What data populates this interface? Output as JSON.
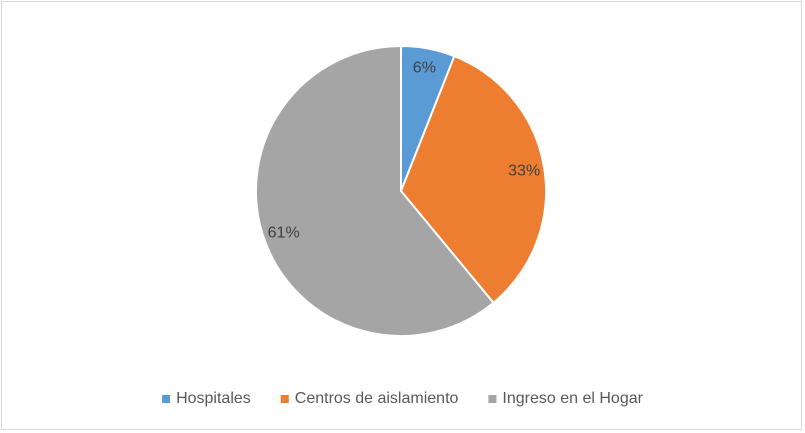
{
  "chart_data": {
    "type": "pie",
    "categories": [
      "Hospitales",
      "Centros de aislamiento",
      "Ingreso en el Hogar"
    ],
    "values": [
      6,
      33,
      61
    ],
    "value_labels": [
      "6%",
      "33%",
      "61%"
    ],
    "colors": [
      "#5b9bd5",
      "#ed7d31",
      "#a5a5a5"
    ],
    "legend": "bottom"
  }
}
